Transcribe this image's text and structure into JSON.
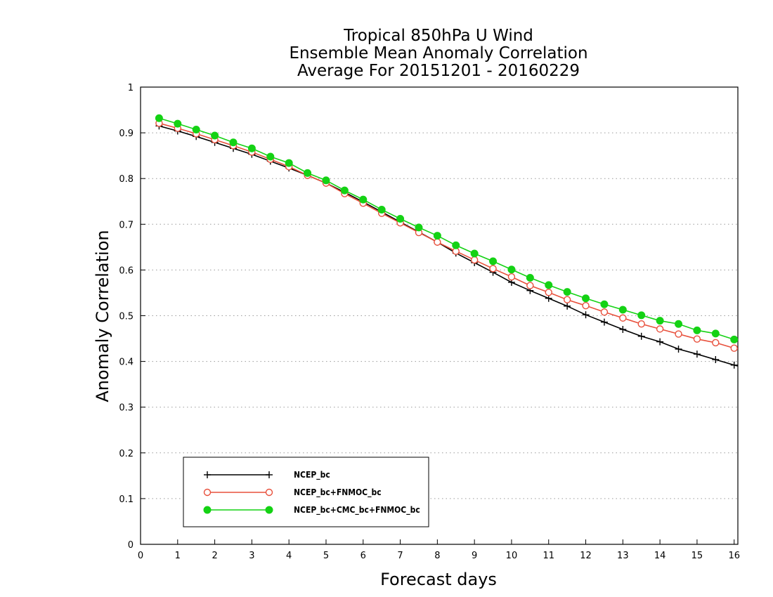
{
  "chart_data": {
    "type": "line",
    "title_lines": [
      "Tropical 850hPa U Wind",
      "Ensemble Mean Anomaly Correlation",
      "Average For 20151201 - 20160229"
    ],
    "xlabel": "Forecast days",
    "ylabel": "Anomaly Correlation",
    "xlim": [
      0,
      16.1
    ],
    "ylim": [
      0,
      1
    ],
    "xticks": [
      0,
      1,
      2,
      3,
      4,
      5,
      6,
      7,
      8,
      9,
      10,
      11,
      12,
      13,
      14,
      15,
      16
    ],
    "xtick_labels": [
      "0",
      "1",
      "2",
      "3",
      "4",
      "5",
      "6",
      "7",
      "8",
      "9",
      "10",
      "11",
      "12",
      "13",
      "14",
      "15",
      "16"
    ],
    "yticks": [
      0,
      0.1,
      0.2,
      0.3,
      0.4,
      0.5,
      0.6,
      0.7,
      0.8,
      0.9,
      1
    ],
    "ytick_labels": [
      "0",
      "0.1",
      "0.2",
      "0.3",
      "0.4",
      "0.5",
      "0.6",
      "0.7",
      "0.8",
      "0.9",
      "1"
    ],
    "grid": "horizontal-dotted",
    "legend_position": "bottom-left",
    "x": [
      0.5,
      1,
      1.5,
      2,
      2.5,
      3,
      3.5,
      4,
      4.5,
      5,
      5.5,
      6,
      6.5,
      7,
      7.5,
      8,
      8.5,
      9,
      9.5,
      10,
      10.5,
      11,
      11.5,
      12,
      12.5,
      13,
      13.5,
      14,
      14.5,
      15,
      15.5,
      16,
      16.1
    ],
    "series": [
      {
        "name": "NCEP_bc",
        "color": "#000000",
        "marker": "plus",
        "values": [
          0.915,
          0.904,
          0.892,
          0.879,
          0.866,
          0.853,
          0.838,
          0.823,
          0.807,
          0.79,
          0.77,
          0.749,
          0.727,
          0.705,
          0.683,
          0.661,
          0.637,
          0.616,
          0.595,
          0.573,
          0.555,
          0.538,
          0.521,
          0.502,
          0.486,
          0.47,
          0.455,
          0.443,
          0.427,
          0.416,
          0.404,
          0.392,
          0.39
        ]
      },
      {
        "name": "NCEP_bc+FNMOC_bc",
        "color": "#e8503c",
        "marker": "open-circle",
        "values": [
          0.921,
          0.91,
          0.898,
          0.885,
          0.872,
          0.858,
          0.842,
          0.826,
          0.807,
          0.79,
          0.767,
          0.746,
          0.724,
          0.703,
          0.682,
          0.661,
          0.641,
          0.622,
          0.603,
          0.585,
          0.566,
          0.551,
          0.535,
          0.522,
          0.508,
          0.495,
          0.482,
          0.471,
          0.46,
          0.449,
          0.441,
          0.429,
          0.427
        ]
      },
      {
        "name": "NCEP_bc+CMC_bc+FNMOC_bc",
        "color": "#14d214",
        "marker": "filled-circle",
        "values": [
          0.932,
          0.92,
          0.907,
          0.894,
          0.879,
          0.866,
          0.848,
          0.834,
          0.812,
          0.796,
          0.774,
          0.754,
          0.732,
          0.712,
          0.693,
          0.675,
          0.654,
          0.636,
          0.619,
          0.601,
          0.583,
          0.567,
          0.552,
          0.538,
          0.525,
          0.513,
          0.501,
          0.489,
          0.482,
          0.468,
          0.461,
          0.448,
          0.446
        ]
      }
    ]
  }
}
